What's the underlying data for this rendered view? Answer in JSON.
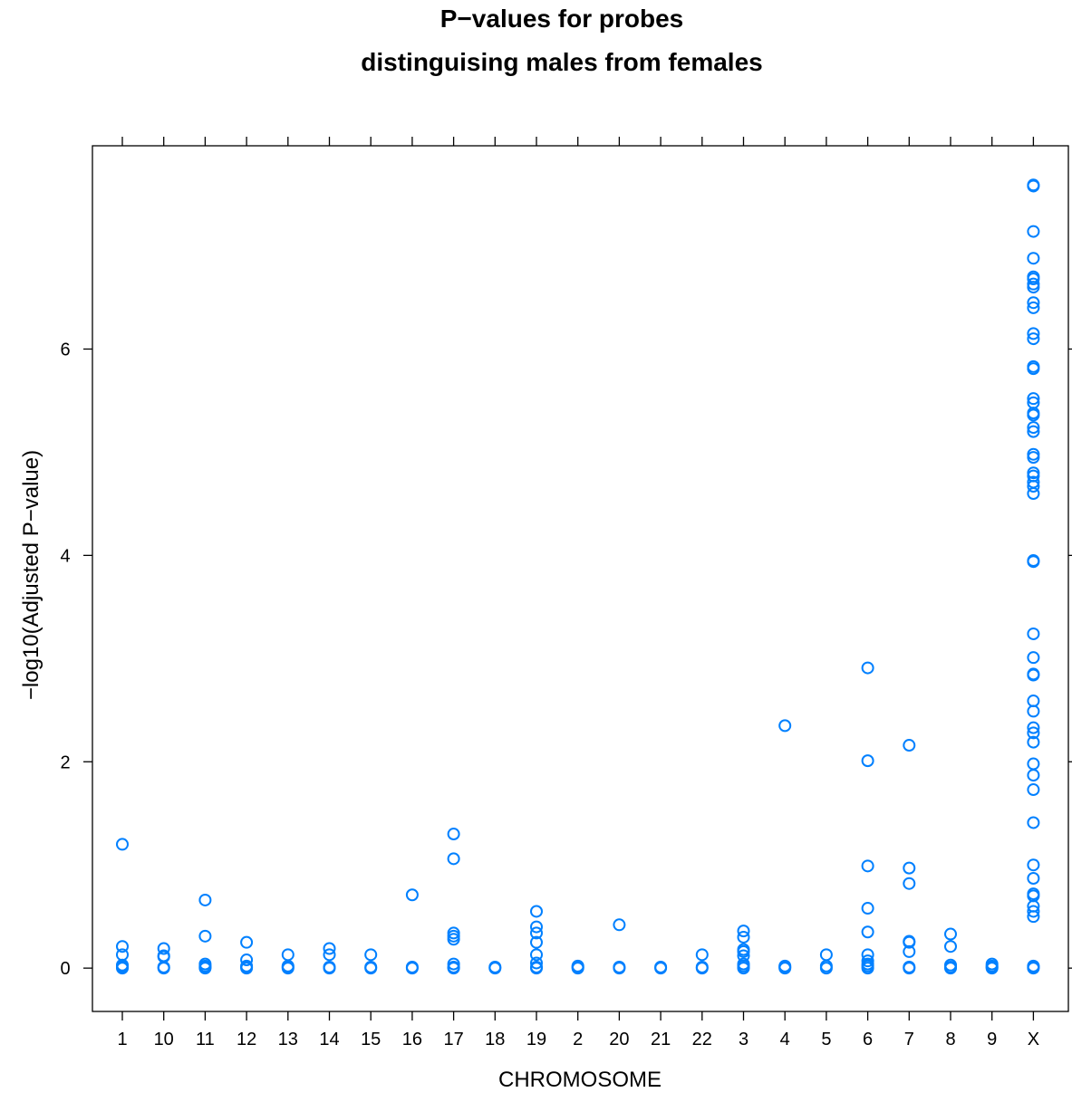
{
  "chart_data": {
    "type": "scatter",
    "title": [
      "P−values for probes",
      "distinguising males from females"
    ],
    "xlabel": "CHROMOSOME",
    "ylabel": "−log10(Adjusted P−value)",
    "categories": [
      "1",
      "10",
      "11",
      "12",
      "13",
      "14",
      "15",
      "16",
      "17",
      "18",
      "19",
      "2",
      "20",
      "21",
      "22",
      "3",
      "4",
      "5",
      "6",
      "7",
      "8",
      "9",
      "X"
    ],
    "yticks": [
      0,
      2,
      4,
      6
    ],
    "ylim": [
      -0.42,
      7.97
    ],
    "grid": false,
    "legend": "none",
    "point_color": "#0080ff",
    "marker": "open-circle",
    "points": {
      "1": [
        1.2,
        0.21,
        0.13,
        0.03,
        0.02,
        0.01,
        0.0
      ],
      "10": [
        0.19,
        0.12,
        0.11,
        0.01,
        0.0
      ],
      "11": [
        0.66,
        0.31,
        0.04,
        0.02,
        0.01,
        0.0
      ],
      "12": [
        0.25,
        0.08,
        0.02,
        0.01,
        0.0
      ],
      "13": [
        0.13,
        0.02,
        0.01,
        0.0
      ],
      "14": [
        0.19,
        0.13,
        0.01,
        0.0
      ],
      "15": [
        0.13,
        0.01,
        0.0
      ],
      "16": [
        0.71,
        0.01,
        0.0
      ],
      "17": [
        1.3,
        1.06,
        0.34,
        0.31,
        0.28,
        0.04,
        0.01,
        0.0
      ],
      "18": [
        0.01,
        0.0
      ],
      "19": [
        0.55,
        0.4,
        0.34,
        0.25,
        0.13,
        0.05,
        0.01,
        0.0
      ],
      "2": [
        0.02,
        0.01,
        0.0
      ],
      "20": [
        0.42,
        0.01,
        0.0
      ],
      "21": [
        0.01,
        0.0
      ],
      "22": [
        0.13,
        0.01,
        0.0
      ],
      "3": [
        0.36,
        0.3,
        0.18,
        0.16,
        0.12,
        0.04,
        0.02,
        0.0
      ],
      "4": [
        2.35,
        0.02,
        0.01,
        0.0
      ],
      "5": [
        0.13,
        0.02,
        0.0
      ],
      "6": [
        2.91,
        2.01,
        0.99,
        0.58,
        0.35,
        0.13,
        0.07,
        0.04,
        0.02,
        0.0
      ],
      "7": [
        2.16,
        0.97,
        0.82,
        0.26,
        0.25,
        0.16,
        0.01,
        0.0
      ],
      "8": [
        0.33,
        0.21,
        0.03,
        0.01,
        0.0
      ],
      "9": [
        0.04,
        0.02,
        0.01,
        0.0
      ],
      "X": [
        7.59,
        7.58,
        7.14,
        6.88,
        6.7,
        6.68,
        6.63,
        6.6,
        6.45,
        6.4,
        6.15,
        6.1,
        5.83,
        5.81,
        5.52,
        5.48,
        5.38,
        5.36,
        5.24,
        5.2,
        4.98,
        4.95,
        4.8,
        4.77,
        4.71,
        4.67,
        4.6,
        3.95,
        3.94,
        3.24,
        3.01,
        2.85,
        2.84,
        2.59,
        2.49,
        2.33,
        2.28,
        2.19,
        1.98,
        1.87,
        1.73,
        1.41,
        1.0,
        0.87,
        0.72,
        0.7,
        0.6,
        0.55,
        0.5,
        0.02,
        0.01,
        0.0
      ]
    }
  }
}
